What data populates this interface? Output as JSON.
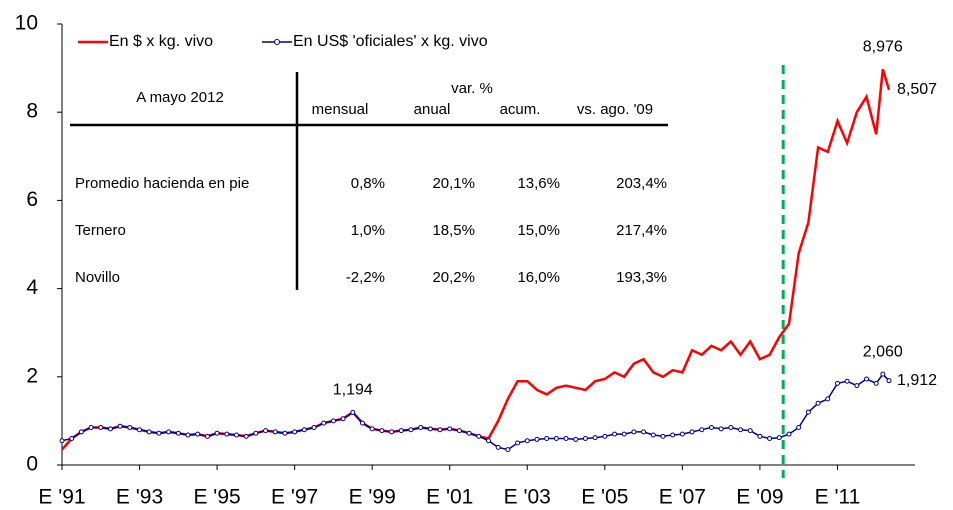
{
  "chart_data": {
    "type": "line",
    "x": [
      1991,
      1991.25,
      1991.5,
      1991.75,
      1992,
      1992.25,
      1992.5,
      1992.75,
      1993,
      1993.25,
      1993.5,
      1993.75,
      1994,
      1994.25,
      1994.5,
      1994.75,
      1995,
      1995.25,
      1995.5,
      1995.75,
      1996,
      1996.25,
      1996.5,
      1996.75,
      1997,
      1997.25,
      1997.5,
      1997.75,
      1998,
      1998.25,
      1998.5,
      1998.75,
      1999,
      1999.25,
      1999.5,
      1999.75,
      2000,
      2000.25,
      2000.5,
      2000.75,
      2001,
      2001.25,
      2001.5,
      2001.75,
      2002,
      2002.25,
      2002.5,
      2002.75,
      2003,
      2003.25,
      2003.5,
      2003.75,
      2004,
      2004.25,
      2004.5,
      2004.75,
      2005,
      2005.25,
      2005.5,
      2005.75,
      2006,
      2006.25,
      2006.5,
      2006.75,
      2007,
      2007.25,
      2007.5,
      2007.75,
      2008,
      2008.25,
      2008.5,
      2008.75,
      2009,
      2009.25,
      2009.5,
      2009.75,
      2010,
      2010.25,
      2010.5,
      2010.75,
      2011,
      2011.25,
      2011.5,
      2011.75,
      2012,
      2012.17,
      2012.33
    ],
    "series": [
      {
        "name": "En $ x kg. vivo",
        "color": "#ff0000",
        "marker": false,
        "values": [
          0.35,
          0.6,
          0.75,
          0.85,
          0.85,
          0.82,
          0.88,
          0.85,
          0.8,
          0.75,
          0.72,
          0.75,
          0.72,
          0.68,
          0.7,
          0.65,
          0.72,
          0.7,
          0.68,
          0.65,
          0.72,
          0.78,
          0.75,
          0.72,
          0.75,
          0.8,
          0.85,
          0.95,
          1.0,
          1.05,
          1.194,
          0.95,
          0.82,
          0.78,
          0.75,
          0.78,
          0.8,
          0.85,
          0.82,
          0.8,
          0.82,
          0.78,
          0.72,
          0.65,
          0.6,
          1.0,
          1.5,
          1.9,
          1.9,
          1.7,
          1.6,
          1.75,
          1.8,
          1.75,
          1.7,
          1.9,
          1.95,
          2.1,
          2.0,
          2.3,
          2.4,
          2.1,
          2.0,
          2.15,
          2.1,
          2.6,
          2.5,
          2.7,
          2.6,
          2.8,
          2.5,
          2.8,
          2.4,
          2.5,
          2.9,
          3.2,
          4.8,
          5.5,
          7.2,
          7.1,
          7.8,
          7.3,
          8.0,
          8.35,
          7.5,
          8.976,
          8.507
        ]
      },
      {
        "name": "En US$ 'oficiales' x kg. vivo",
        "color": "#00008b",
        "marker": true,
        "values": [
          0.55,
          0.6,
          0.75,
          0.85,
          0.85,
          0.82,
          0.88,
          0.85,
          0.8,
          0.75,
          0.72,
          0.75,
          0.72,
          0.68,
          0.7,
          0.65,
          0.72,
          0.7,
          0.68,
          0.65,
          0.72,
          0.78,
          0.75,
          0.72,
          0.75,
          0.8,
          0.85,
          0.95,
          1.0,
          1.05,
          1.194,
          0.95,
          0.82,
          0.78,
          0.75,
          0.78,
          0.8,
          0.85,
          0.82,
          0.8,
          0.82,
          0.78,
          0.72,
          0.65,
          0.55,
          0.4,
          0.35,
          0.5,
          0.55,
          0.58,
          0.6,
          0.6,
          0.6,
          0.58,
          0.6,
          0.62,
          0.65,
          0.7,
          0.7,
          0.75,
          0.75,
          0.68,
          0.65,
          0.68,
          0.7,
          0.75,
          0.8,
          0.85,
          0.82,
          0.85,
          0.8,
          0.78,
          0.65,
          0.6,
          0.62,
          0.7,
          0.85,
          1.2,
          1.4,
          1.5,
          1.85,
          1.9,
          1.8,
          1.95,
          1.85,
          2.06,
          1.912
        ]
      }
    ],
    "xlim": [
      1991,
      2013
    ],
    "xticks": [
      {
        "value": 1991,
        "label": "E '91"
      },
      {
        "value": 1993,
        "label": "E '93"
      },
      {
        "value": 1995,
        "label": "E '95"
      },
      {
        "value": 1997,
        "label": "E '97"
      },
      {
        "value": 1999,
        "label": "E '99"
      },
      {
        "value": 2001,
        "label": "E '01"
      },
      {
        "value": 2003,
        "label": "E '03"
      },
      {
        "value": 2005,
        "label": "E '05"
      },
      {
        "value": 2007,
        "label": "E '07"
      },
      {
        "value": 2009,
        "label": "E '09"
      },
      {
        "value": 2011,
        "label": "E '11"
      }
    ],
    "ylim": [
      0,
      10
    ],
    "yticks": [
      0,
      2,
      4,
      6,
      8,
      10
    ],
    "legend": "top-left",
    "vline": {
      "x": 2009.6,
      "color": "#00b050"
    },
    "annotations": [
      {
        "text": "1,194",
        "x": 1998.5,
        "y": 1.194,
        "position": "above"
      },
      {
        "text": "8,976",
        "x": 2012.17,
        "y": 8.976,
        "position": "above"
      },
      {
        "text": "8,507",
        "x": 2012.33,
        "y": 8.507,
        "position": "right"
      },
      {
        "text": "2,060",
        "x": 2012.17,
        "y": 2.06,
        "position": "above"
      },
      {
        "text": "1,912",
        "x": 2012.33,
        "y": 1.912,
        "position": "right"
      }
    ]
  },
  "table": {
    "title": "A mayo 2012",
    "group": "var. %",
    "columns": [
      "mensual",
      "anual",
      "acum.",
      "vs. ago. '09"
    ],
    "rows": [
      [
        "Promedio hacienda en pie",
        "0,8%",
        "20,1%",
        "13,6%",
        "203,4%"
      ],
      [
        "Ternero",
        "1,0%",
        "18,5%",
        "15,0%",
        "217,4%"
      ],
      [
        "Novillo",
        "-2,2%",
        "20,2%",
        "16,0%",
        "193,3%"
      ]
    ]
  }
}
